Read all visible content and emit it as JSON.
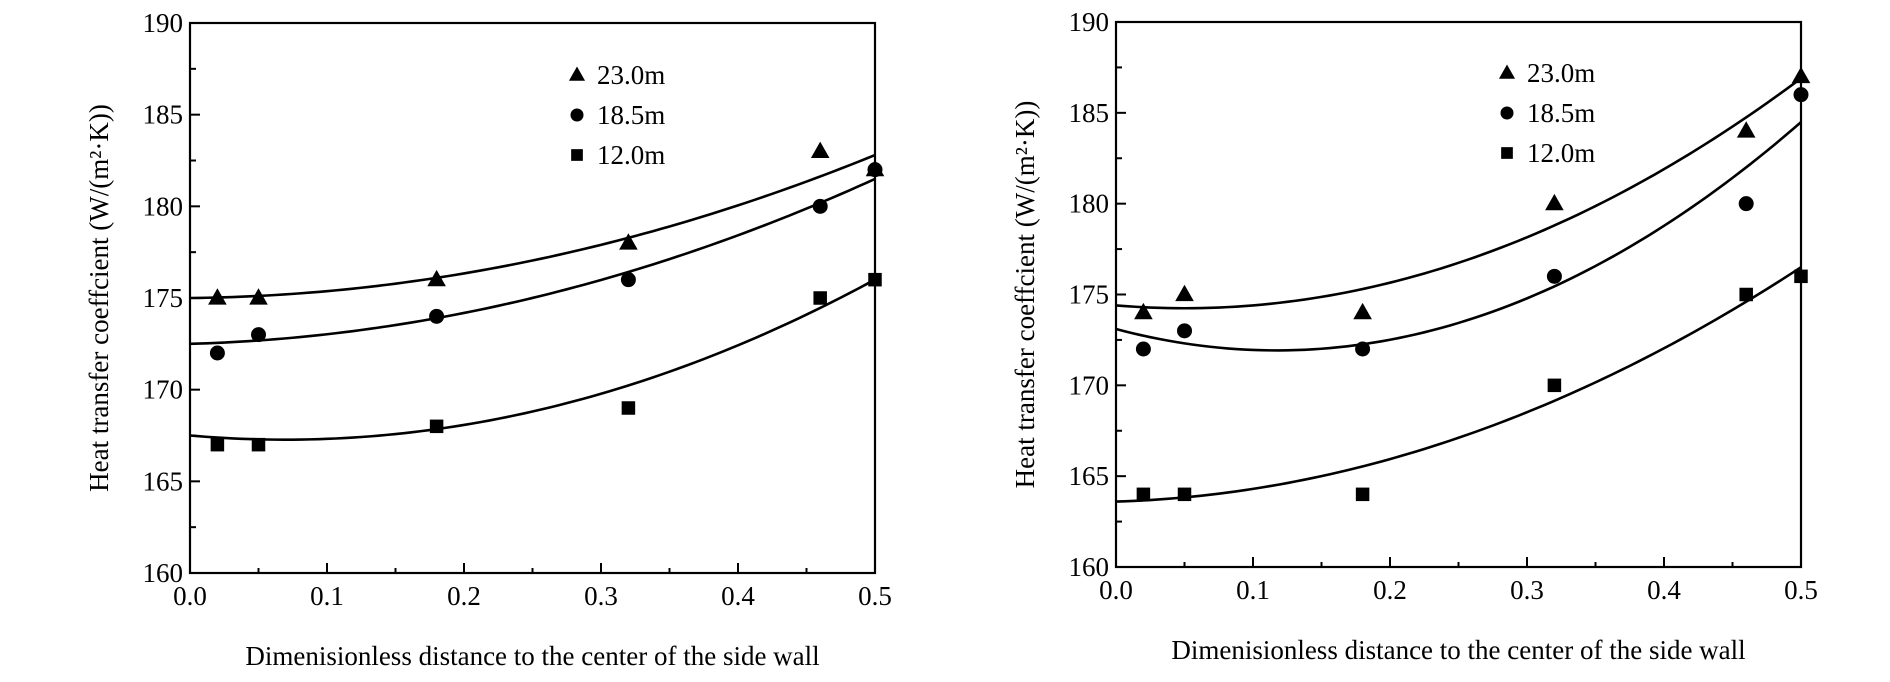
{
  "chart_data": [
    {
      "type": "scatter",
      "panel": "left",
      "title": "",
      "xlabel": "Dimenisionless distance to the center of the side wall",
      "ylabel": "Heat transfer coeffcient (W/(m²·K))",
      "xlim": [
        0.0,
        0.5
      ],
      "ylim": [
        160,
        190
      ],
      "x_ticks": [
        0.0,
        0.1,
        0.2,
        0.3,
        0.4,
        0.5
      ],
      "x_tick_labels": [
        "0.0",
        "0.1",
        "0.2",
        "0.3",
        "0.4",
        "0.5"
      ],
      "y_ticks": [
        160,
        165,
        170,
        175,
        180,
        185,
        190
      ],
      "y_tick_labels": [
        "160",
        "165",
        "170",
        "175",
        "180",
        "185",
        "190"
      ],
      "grid": false,
      "legend_position": "top-right",
      "series": [
        {
          "name": "23.0m",
          "marker": "triangle",
          "x": [
            0.02,
            0.05,
            0.18,
            0.32,
            0.46,
            0.5
          ],
          "y": [
            175,
            175,
            176,
            178,
            183,
            182
          ],
          "fit": {
            "type": "quadratic",
            "coefficients": [
              175.0,
              0.77,
              29.65
            ]
          }
        },
        {
          "name": "18.5m",
          "marker": "circle",
          "x": [
            0.02,
            0.05,
            0.18,
            0.32,
            0.46,
            0.5
          ],
          "y": [
            172,
            173,
            174,
            176,
            180,
            182
          ],
          "fit": {
            "type": "quadratic",
            "coefficients": [
              172.5,
              2.04,
              31.9
            ]
          }
        },
        {
          "name": "12.0m",
          "marker": "square",
          "x": [
            0.02,
            0.05,
            0.18,
            0.32,
            0.46,
            0.5
          ],
          "y": [
            167,
            167,
            168,
            169,
            175,
            176
          ],
          "fit": {
            "type": "quadratic",
            "coefficients": [
              167.5,
              -6.54,
              47.1
            ]
          }
        }
      ]
    },
    {
      "type": "scatter",
      "panel": "right",
      "title": "",
      "xlabel": "Dimenisionless distance to the center of the side wall",
      "ylabel": "Heat transfer coeffcient (W/(m²·K))",
      "xlim": [
        0.0,
        0.5
      ],
      "ylim": [
        160,
        190
      ],
      "x_ticks": [
        0.0,
        0.1,
        0.2,
        0.3,
        0.4,
        0.5
      ],
      "x_tick_labels": [
        "0.0",
        "0.1",
        "0.2",
        "0.3",
        "0.4",
        "0.5"
      ],
      "y_ticks": [
        160,
        165,
        170,
        175,
        180,
        185,
        190
      ],
      "y_tick_labels": [
        "160",
        "165",
        "170",
        "175",
        "180",
        "185",
        "190"
      ],
      "grid": false,
      "legend_position": "top-right",
      "series": [
        {
          "name": "23.0m",
          "marker": "triangle",
          "x": [
            0.02,
            0.05,
            0.18,
            0.32,
            0.46,
            0.5
          ],
          "y": [
            174,
            175,
            174,
            180,
            184,
            187
          ],
          "fit": {
            "type": "quadratic",
            "coefficients": [
              174.4,
              -6.25,
              62.5
            ]
          }
        },
        {
          "name": "18.5m",
          "marker": "circle",
          "x": [
            0.02,
            0.05,
            0.18,
            0.32,
            0.46,
            0.5
          ],
          "y": [
            172,
            173,
            172,
            176,
            180,
            186
          ],
          "fit": {
            "type": "quadratic",
            "coefficients": [
              173.1,
              -20.1,
              85.75
            ]
          }
        },
        {
          "name": "12.0m",
          "marker": "square",
          "x": [
            0.02,
            0.05,
            0.18,
            0.32,
            0.46,
            0.5
          ],
          "y": [
            164,
            164,
            164,
            170,
            175,
            176
          ],
          "fit": {
            "type": "quadratic",
            "coefficients": [
              163.6,
              2.3,
              47.0
            ]
          }
        }
      ]
    }
  ]
}
